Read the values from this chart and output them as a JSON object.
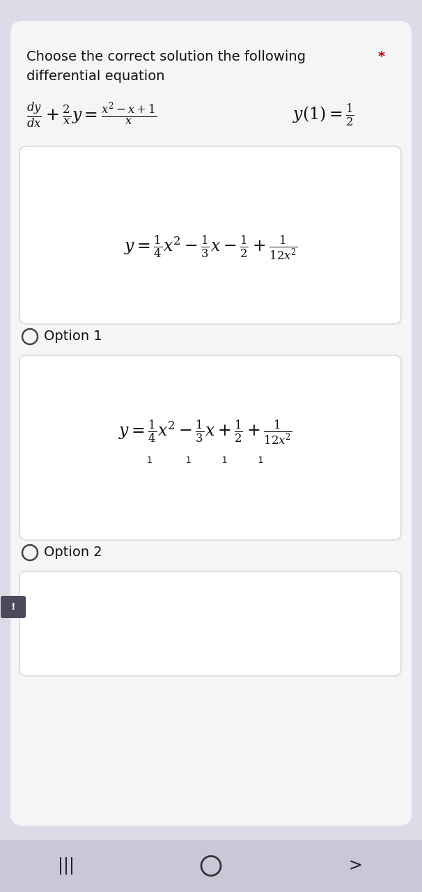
{
  "bg_color": "#dcdce8",
  "card_color": "#f5f5f7",
  "white_box_color": "#ffffff",
  "title_line1": "Choose the correct solution the following",
  "title_line2": "differential equation",
  "asterisk": "*",
  "de_left": "$\\frac{dy}{dx} + \\frac{2}{x}y = \\frac{x^2-x+1}{x}$",
  "de_right": "$y(1) = \\frac{1}{2}$",
  "option1_label": "Option 1",
  "option1_formula": "$y = \\frac{1}{4}x^2 - \\frac{1}{3}x - \\frac{1}{2} + \\frac{1}{12x^2}$",
  "option2_label": "Option 2",
  "option2_formula": "$y = \\frac{1}{4}x^2 - \\frac{1}{3}x + \\frac{1}{2} + \\frac{1}{12x^2}$",
  "option2_sub": "1            1           1           1",
  "title_fontsize": 14,
  "de_fontsize": 17,
  "formula_fontsize": 17,
  "option_label_fontsize": 14,
  "sub_fontsize": 9,
  "text_color": "#111111",
  "asterisk_color": "#cc0000",
  "box_edge_color": "#cccccc",
  "nav_bg": "#c8c8d8",
  "bubble_bg": "#4a4a5a"
}
